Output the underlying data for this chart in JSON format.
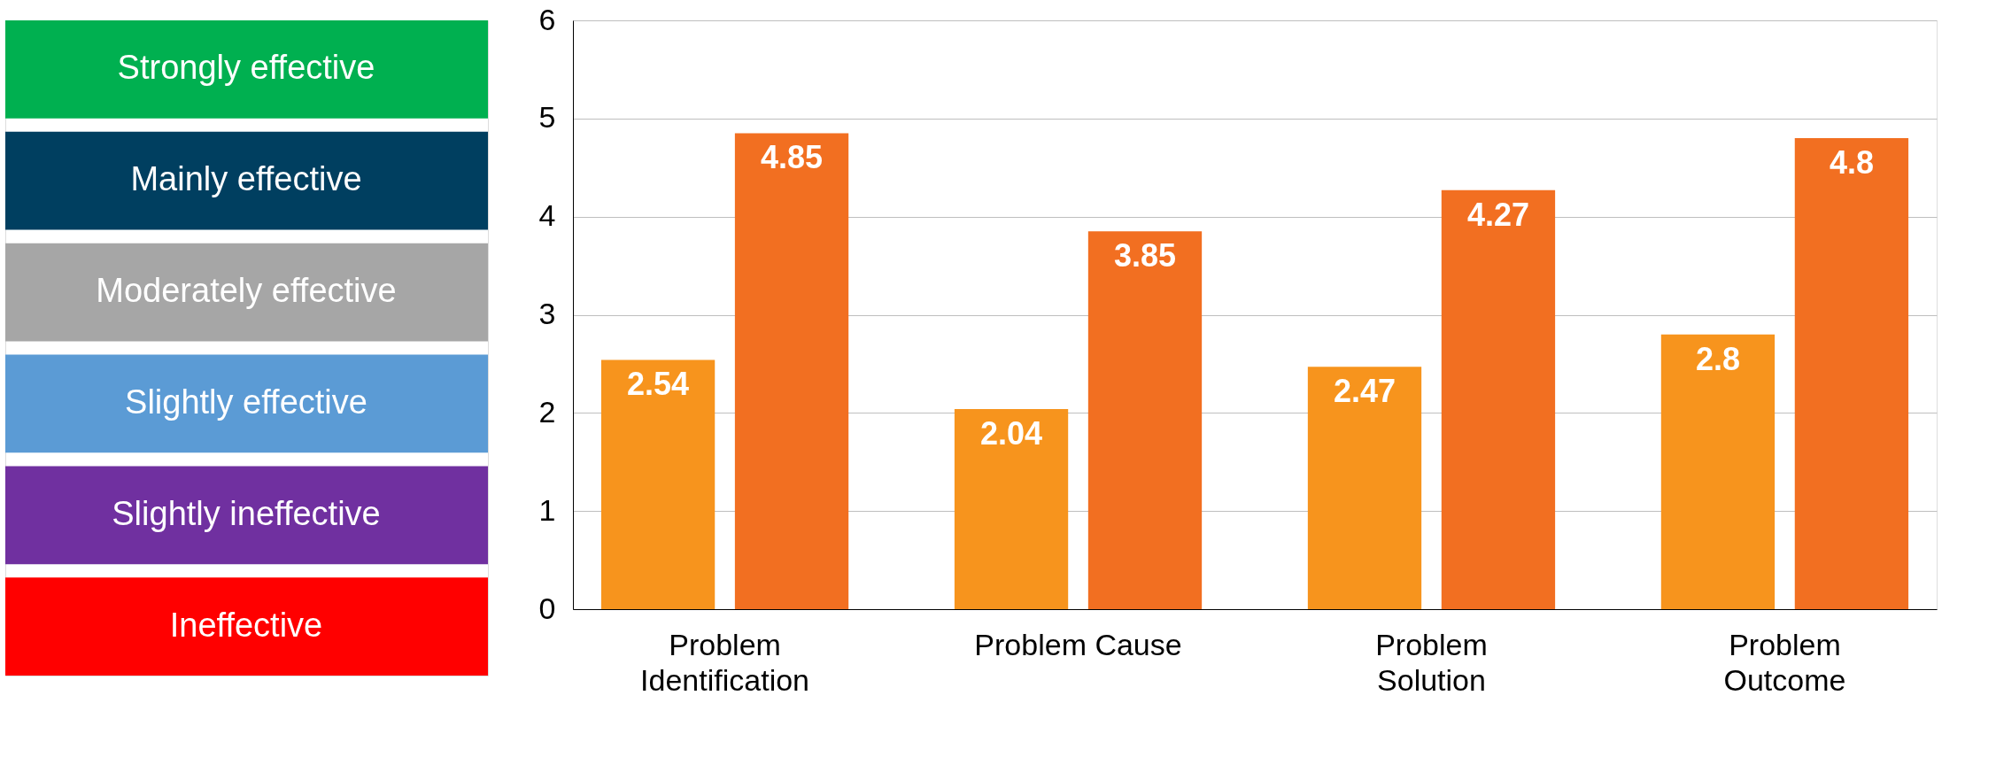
{
  "chart_data": [
    {
      "type": "other",
      "categories": [
        "Strongly effective",
        "Mainly effective",
        "Moderately effective",
        "Slightly effective",
        "Slightly ineffective",
        "Ineffective"
      ],
      "colors": [
        "#00b050",
        "#003f60",
        "#a6a6a6",
        "#5b9bd5",
        "#7030a0",
        "#ff0000"
      ]
    },
    {
      "type": "bar",
      "categories": [
        "Problem Identification",
        "Problem Cause",
        "Problem Solution",
        "Problem Outcome"
      ],
      "series": [
        {
          "color": "#f7941d",
          "values": [
            2.54,
            2.04,
            2.47,
            2.8
          ]
        },
        {
          "color": "#f26f21",
          "values": [
            4.85,
            3.85,
            4.27,
            4.8
          ]
        }
      ],
      "ylim": [
        0,
        6
      ],
      "yticks": [
        0,
        1,
        2,
        3,
        4,
        5,
        6
      ],
      "grid": "y",
      "data_labels": true
    }
  ]
}
